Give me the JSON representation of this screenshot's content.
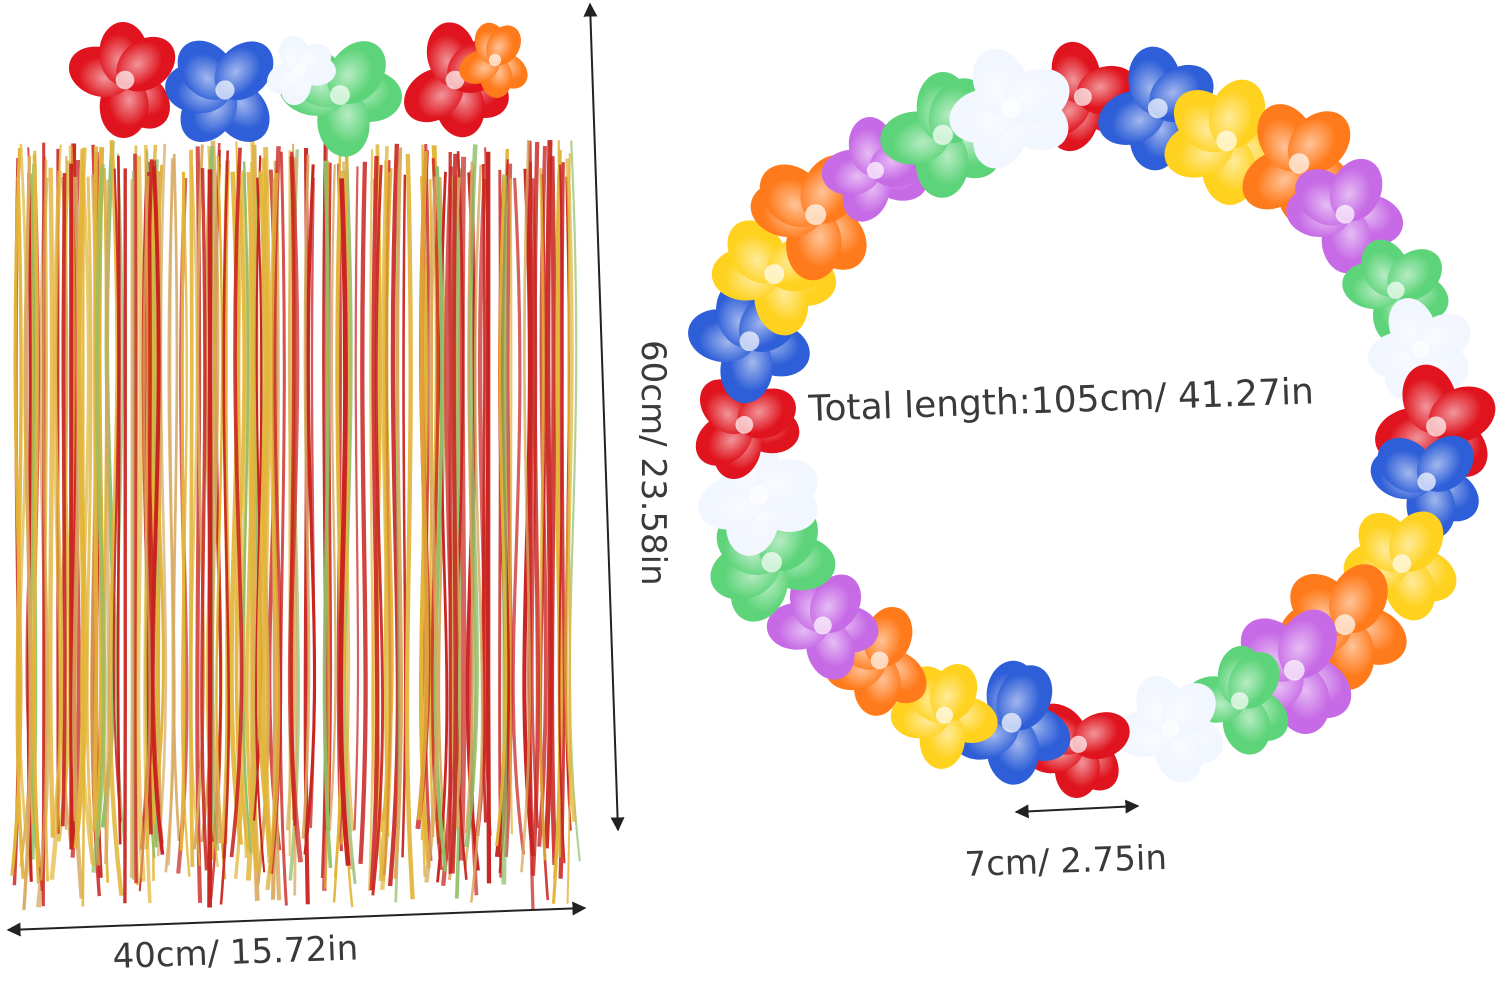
{
  "labels": {
    "skirt_width": "40cm/ 15.72in",
    "skirt_height": "60cm/ 23.58in",
    "lei_total_length": "Total length:105cm/ 41.27in",
    "flower_size": "7cm/ 2.75in"
  },
  "colors": {
    "text": "#3a3a3a",
    "line": "#222222",
    "strand_red": "#c8231f",
    "strand_yellow": "#e2b53a",
    "strand_green": "#8fbf6a",
    "strand_tan": "#d9a960",
    "flower_palette": [
      "#e0141e",
      "#2f5fd8",
      "#ffd21f",
      "#ff7a1a",
      "#c76ae6",
      "#5ed47a",
      "#f2f6ff"
    ]
  }
}
